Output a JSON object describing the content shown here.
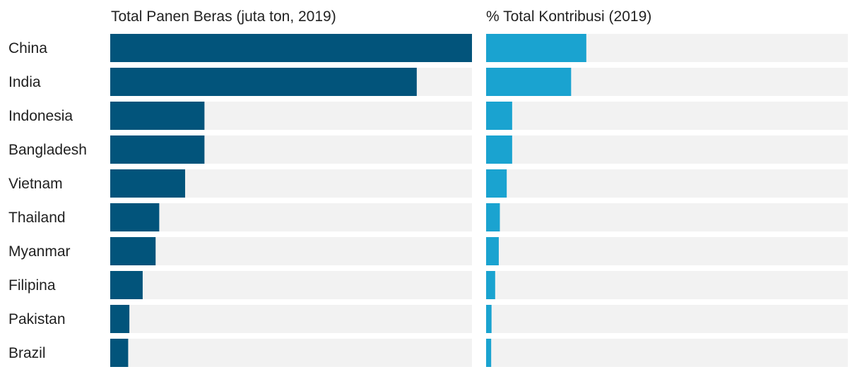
{
  "panels": {
    "left_title": "Total Panen Beras (juta ton, 2019)",
    "right_title": "% Total Kontribusi (2019)"
  },
  "colors": {
    "left_bar": "#02547b",
    "right_bar": "#1aa3d0",
    "track": "#f2f2f2",
    "label": "#1f1f1f"
  },
  "chart_data": [
    {
      "type": "bar",
      "orientation": "horizontal",
      "title": "Total Panen Beras (juta ton, 2019)",
      "categories": [
        "China",
        "India",
        "Indonesia",
        "Bangladesh",
        "Vietnam",
        "Thailand",
        "Myanmar",
        "Filipina",
        "Pakistan",
        "Brazil"
      ],
      "values": [
        209.6,
        177.6,
        54.6,
        54.6,
        43.4,
        28.4,
        26.3,
        18.8,
        11.1,
        10.4
      ],
      "xlim": [
        0,
        209.6
      ],
      "grid": false,
      "legend": "none"
    },
    {
      "type": "bar",
      "orientation": "horizontal",
      "title": "% Total Kontribusi (2019)",
      "categories": [
        "China",
        "India",
        "Indonesia",
        "Bangladesh",
        "Vietnam",
        "Thailand",
        "Myanmar",
        "Filipina",
        "Pakistan",
        "Brazil"
      ],
      "values": [
        27.7,
        23.5,
        7.2,
        7.2,
        5.7,
        3.8,
        3.5,
        2.5,
        1.5,
        1.4
      ],
      "xlim": [
        0,
        100
      ],
      "grid": false,
      "legend": "none"
    }
  ]
}
